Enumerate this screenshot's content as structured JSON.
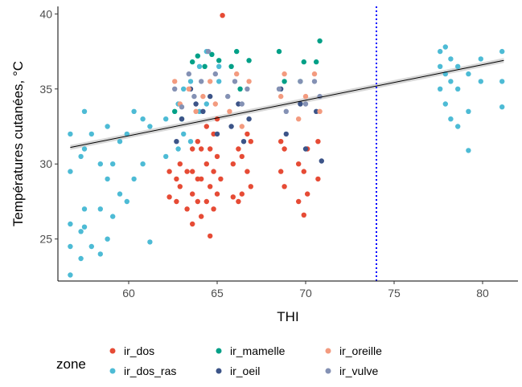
{
  "chart_data": {
    "type": "scatter",
    "title": "",
    "xlabel": "THI",
    "ylabel": "Températures cutanées, °C",
    "xlim": [
      56.0,
      82.0
    ],
    "ylim": [
      22.2,
      40.5
    ],
    "x_ticks": [
      60,
      65,
      70,
      75,
      80
    ],
    "y_ticks": [
      25,
      30,
      35,
      40
    ],
    "grid": false,
    "legend": {
      "title": "zone",
      "position": "bottom",
      "entries": [
        {
          "label": "ir_dos",
          "color": "#E64B35"
        },
        {
          "label": "ir_dos_ras",
          "color": "#4DBBD5"
        },
        {
          "label": "ir_mamelle",
          "color": "#00A087"
        },
        {
          "label": "ir_oeil",
          "color": "#3C5488"
        },
        {
          "label": "ir_oreille",
          "color": "#F39B7F"
        },
        {
          "label": "ir_vulve",
          "color": "#8491B4"
        }
      ]
    },
    "reference_line": {
      "orientation": "vertical",
      "x": 74,
      "color": "#0000ff",
      "style": "dotted"
    },
    "trend_line": {
      "type": "linear fit",
      "x": [
        56.7,
        81.2
      ],
      "y": [
        31.1,
        36.9
      ],
      "color": "#000000",
      "band_color": "#bdbdbd"
    },
    "series": [
      {
        "name": "ir_dos_ras",
        "color": "#4DBBD5",
        "x": [
          56.7,
          56.7,
          56.7,
          56.7,
          56.7,
          57.3,
          57.3,
          57.3,
          57.5,
          57.5,
          57.5,
          57.5,
          57.9,
          57.9,
          58.4,
          58.4,
          58.4,
          58.8,
          58.8,
          58.8,
          59.1,
          59.1,
          59.5,
          59.5,
          59.9,
          59.9,
          60.3,
          60.3,
          60.8,
          60.8,
          61.2,
          61.2,
          62.1,
          62.1,
          62.8,
          62.8,
          63.1,
          63.1,
          63.5,
          63.5,
          64.0,
          64.0,
          64.4,
          64.4,
          65.1,
          65.1,
          77.6,
          77.6,
          77.6,
          77.9,
          77.9,
          77.9,
          78.2,
          78.2,
          78.2,
          78.6,
          78.6,
          78.6,
          79.2,
          79.2,
          79.2,
          79.9,
          79.9,
          81.1,
          81.1,
          81.1
        ],
        "y": [
          22.6,
          24.5,
          26.0,
          29.5,
          32.0,
          23.7,
          25.5,
          30.5,
          25.8,
          27.0,
          31.0,
          33.5,
          24.5,
          32.0,
          24.0,
          27.0,
          30.0,
          25.0,
          29.0,
          32.5,
          26.5,
          30.0,
          28.0,
          31.5,
          27.5,
          32.0,
          29.0,
          33.5,
          30.0,
          33.0,
          24.8,
          32.5,
          30.5,
          33.0,
          31.0,
          34.0,
          32.0,
          35.0,
          31.5,
          35.5,
          33.5,
          36.5,
          34.0,
          37.5,
          35.5,
          36.5,
          35.0,
          36.5,
          37.5,
          34.0,
          36.0,
          37.8,
          33.0,
          35.5,
          37.0,
          32.5,
          35.0,
          36.5,
          30.9,
          33.5,
          36.0,
          35.5,
          37.0,
          33.8,
          35.5,
          37.5
        ]
      },
      {
        "name": "ir_dos",
        "color": "#E64B35",
        "x": [
          62.3,
          62.3,
          62.7,
          62.7,
          62.9,
          62.9,
          63.3,
          63.3,
          63.6,
          63.6,
          63.6,
          63.6,
          63.9,
          63.9,
          63.9,
          64.1,
          64.1,
          64.1,
          64.4,
          64.4,
          64.4,
          64.6,
          64.6,
          64.6,
          64.8,
          64.8,
          64.8,
          65.0,
          65.0,
          65.0,
          65.2,
          65.3,
          65.9,
          65.9,
          66.2,
          66.2,
          66.4,
          66.4,
          66.7,
          66.7,
          66.9,
          66.9,
          68.6,
          68.6,
          68.8,
          68.8,
          69.6,
          69.6,
          69.9,
          69.9,
          70.1,
          70.1,
          70.7,
          70.7
        ],
        "y": [
          27.8,
          29.5,
          27.5,
          29.0,
          28.5,
          30.0,
          27.0,
          29.5,
          26.0,
          28.0,
          29.5,
          31.0,
          27.5,
          29.0,
          31.5,
          26.5,
          29.0,
          31.0,
          27.5,
          30.0,
          32.5,
          25.2,
          28.5,
          31.0,
          27.0,
          29.5,
          32.0,
          28.0,
          30.5,
          33.0,
          29.0,
          39.9,
          27.8,
          30.0,
          27.5,
          31.0,
          28.0,
          30.5,
          29.5,
          32.0,
          28.5,
          31.5,
          29.5,
          31.5,
          28.5,
          31.0,
          27.5,
          30.0,
          26.6,
          29.5,
          28.0,
          31.0,
          29.0,
          31.5
        ]
      },
      {
        "name": "ir_mamelle",
        "color": "#00A087",
        "x": [
          62.6,
          63.0,
          63.6,
          63.9,
          64.3,
          64.7,
          65.1,
          65.8,
          66.1,
          66.3,
          66.8,
          68.5,
          68.8,
          69.7,
          69.9,
          70.6,
          70.8
        ],
        "y": [
          33.5,
          33.0,
          36.8,
          37.2,
          36.5,
          37.3,
          36.9,
          36.5,
          37.5,
          35.0,
          36.9,
          37.5,
          35.5,
          35.5,
          36.8,
          36.8,
          38.2
        ]
      },
      {
        "name": "ir_oeil",
        "color": "#3C5488",
        "x": [
          62.7,
          63.0,
          63.5,
          63.8,
          64.2,
          64.6,
          65.0,
          65.8,
          66.2,
          66.5,
          66.8,
          68.6,
          68.9,
          69.7,
          70.0,
          70.6,
          70.9
        ],
        "y": [
          31.5,
          33.0,
          35.0,
          34.0,
          33.5,
          34.5,
          32.0,
          32.5,
          34.0,
          31.5,
          33.0,
          35.0,
          32.0,
          34.0,
          31.0,
          33.5,
          30.2
        ]
      },
      {
        "name": "ir_oreille",
        "color": "#F39B7F",
        "x": [
          62.6,
          62.9,
          63.4,
          63.8,
          64.2,
          64.6,
          64.9,
          65.7,
          66.1,
          66.4,
          66.8,
          68.6,
          68.8,
          69.6,
          70.0,
          70.5,
          70.8
        ],
        "y": [
          35.5,
          34.0,
          35.0,
          33.5,
          34.5,
          35.5,
          34.0,
          33.5,
          36.0,
          32.5,
          35.5,
          34.5,
          36.0,
          33.0,
          34.5,
          36.0,
          33.5
        ]
      },
      {
        "name": "ir_vulve",
        "color": "#8491B4",
        "x": [
          62.6,
          63.0,
          63.4,
          63.7,
          64.1,
          64.5,
          64.9,
          65.6,
          66.0,
          66.4,
          66.7,
          68.5,
          68.9,
          69.7,
          70.0,
          70.5,
          70.8
        ],
        "y": [
          35.0,
          33.8,
          36.0,
          34.5,
          35.5,
          37.5,
          36.0,
          34.5,
          35.5,
          34.0,
          35.0,
          35.0,
          33.5,
          35.5,
          34.0,
          35.5,
          34.5
        ]
      }
    ]
  }
}
